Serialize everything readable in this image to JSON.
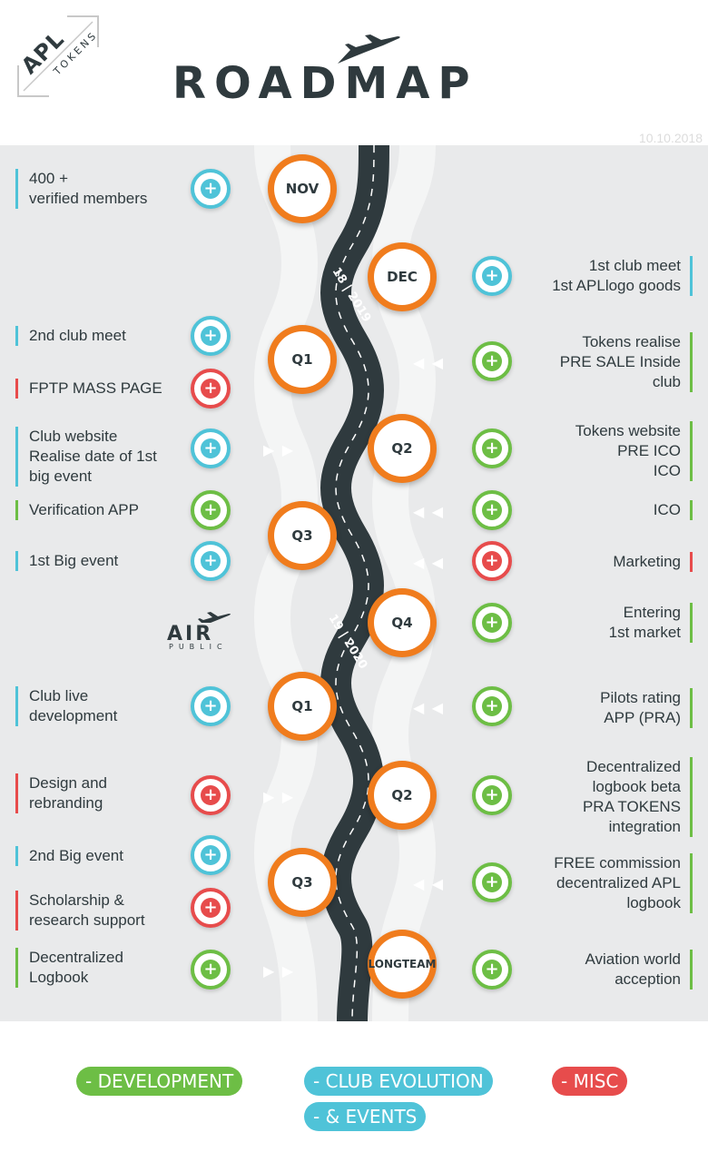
{
  "header": {
    "logo_main": "APL",
    "logo_sub": "TOKENS",
    "title": "ROADMAP",
    "date": "10.10.2018"
  },
  "road_labels": [
    "18 | 2019",
    "19 | 2020"
  ],
  "brand": {
    "name": "AIR",
    "sub": "PUBLIC"
  },
  "nodes": [
    {
      "label": "NOV"
    },
    {
      "label": "DEC"
    },
    {
      "label": "Q1"
    },
    {
      "label": "Q2"
    },
    {
      "label": "Q3"
    },
    {
      "label": "Q4"
    },
    {
      "label": "Q1"
    },
    {
      "label": "Q2"
    },
    {
      "label": "Q3"
    },
    {
      "label_line1": "LONG",
      "label_line2": "TEAM"
    }
  ],
  "left_items": [
    {
      "text_line1": "400 +",
      "text_line2": "verified members",
      "category": "club"
    },
    {
      "text": "2nd club meet",
      "category": "club"
    },
    {
      "text": "FPTP MASS PAGE",
      "category": "misc"
    },
    {
      "text_line1": "Club website",
      "text_line2": "Realise date of 1st",
      "text_line3": "big event",
      "category": "club"
    },
    {
      "text": "Verification APP",
      "category": "development"
    },
    {
      "text": "1st Big event",
      "category": "club"
    },
    {
      "text_line1": "Club live",
      "text_line2": "development",
      "category": "club"
    },
    {
      "text_line1": "Design and",
      "text_line2": "rebranding",
      "category": "misc"
    },
    {
      "text": "2nd Big event",
      "category": "club"
    },
    {
      "text_line1": "Scholarship &",
      "text_line2": "research support",
      "category": "misc"
    },
    {
      "text_line1": "Decentralized",
      "text_line2": "Logbook",
      "category": "development"
    }
  ],
  "right_items": [
    {
      "text_line1": "1st club meet",
      "text_line2": "1st APLlogo goods",
      "category": "club"
    },
    {
      "text_line1": "Tokens realise",
      "text_line2": "PRE SALE Inside",
      "text_line3": "club",
      "category": "development"
    },
    {
      "text_line1": "Tokens website",
      "text_line2": "PRE ICO",
      "text_line3": "ICO",
      "category": "development"
    },
    {
      "text": "ICO",
      "category": "development"
    },
    {
      "text": "Marketing",
      "category": "misc"
    },
    {
      "text_line1": "Entering",
      "text_line2": "1st market",
      "category": "development"
    },
    {
      "text_line1": "Pilots rating",
      "text_line2": "APP (PRA)",
      "category": "development"
    },
    {
      "text_line1": "Decentralized",
      "text_line2": "logbook beta",
      "text_line3": "PRA TOKENS",
      "text_line4": "integration",
      "category": "development"
    },
    {
      "text_line1": "FREE commission",
      "text_line2": "decentralized APL",
      "text_line3": "logbook",
      "category": "development"
    },
    {
      "text_line1": "Aviation world",
      "text_line2": "acception",
      "category": "development"
    }
  ],
  "legend": {
    "development": "- DEVELOPMENT",
    "club_1": "- CLUB EVOLUTION",
    "club_2": "- & EVENTS",
    "misc": "- MISC"
  },
  "colors": {
    "development": "#6dbe45",
    "club": "#4fc3d8",
    "misc": "#e74c4c",
    "node": "#f07c1d",
    "road": "#2f3a3e"
  }
}
